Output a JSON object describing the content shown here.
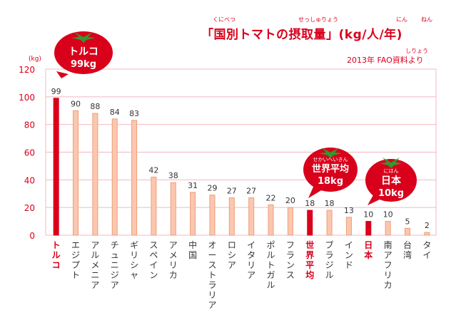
{
  "title": {
    "text": "「国別トマトの摂取量」(kg/人/年)",
    "ruby": [
      "くにべつ",
      "せっしゅりょう",
      "にん",
      "ねん"
    ]
  },
  "source": {
    "text": "2013年 FAO資料より",
    "ruby": "しりょう"
  },
  "callouts": {
    "turkey": {
      "name": "トルコ",
      "value": "99kg"
    },
    "world": {
      "ruby": "せかいへいきん",
      "name": "世界平均",
      "value": "18kg"
    },
    "japan": {
      "ruby": "にほん",
      "name": "日本",
      "value": "10kg"
    }
  },
  "colors": {
    "accent": "#d9001b",
    "bar_normal_fill": "#fbc7ae",
    "bar_normal_stroke": "#ee9d7c",
    "bar_highlight": "#d9001b",
    "grid": "#f2b8c0",
    "tomato_stem": "#2e9a2e"
  },
  "chart_data": {
    "type": "bar",
    "ylabel": "(kg)",
    "ylim": [
      0,
      120
    ],
    "yticks": [
      0,
      20,
      40,
      60,
      80,
      100,
      120
    ],
    "grid": true,
    "categories": [
      "トルコ",
      "エジプト",
      "アルメニア",
      "チュニジア",
      "ギリシャ",
      "スペイン",
      "アメリカ",
      "中国",
      "オーストラリア",
      "ロシア",
      "イタリア",
      "ポルトガル",
      "フランス",
      "世界平均",
      "ブラジル",
      "インド",
      "日本",
      "南アフリカ",
      "台湾",
      "タイ"
    ],
    "values": [
      99,
      90,
      88,
      84,
      83,
      42,
      38,
      31,
      29,
      27,
      27,
      22,
      20,
      18,
      18,
      13,
      10,
      10,
      5,
      2
    ],
    "highlighted": [
      "トルコ",
      "世界平均",
      "日本"
    ]
  }
}
